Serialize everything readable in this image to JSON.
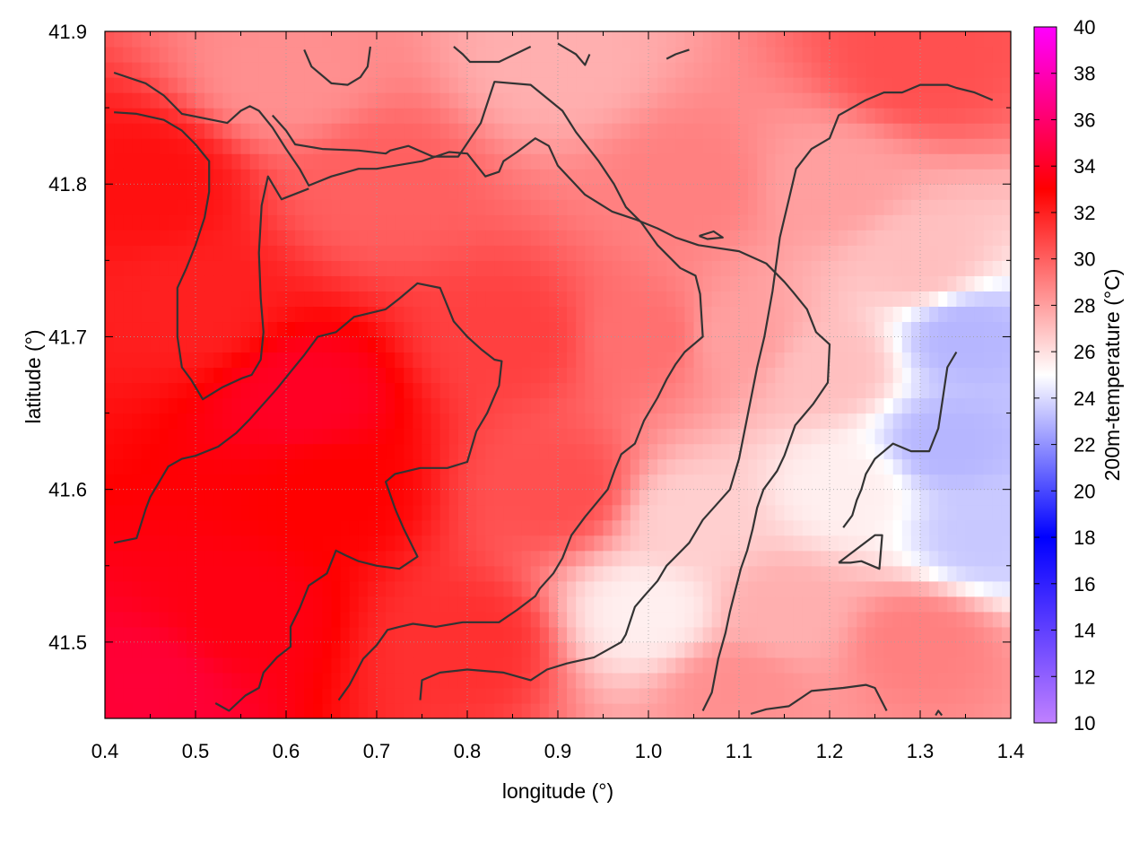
{
  "chart_data": {
    "type": "heatmap",
    "title": "",
    "xlabel": "longitude (°)",
    "ylabel": "latitude (°)",
    "colorbar_label": "200m-temperature (°C)",
    "xlim": [
      0.4,
      1.4
    ],
    "ylim": [
      41.45,
      41.9
    ],
    "clim": [
      10,
      40
    ],
    "x_ticks": [
      "0.4",
      "0.5",
      "0.6",
      "0.7",
      "0.8",
      "0.9",
      "1.0",
      "1.1",
      "1.2",
      "1.3",
      "1.4"
    ],
    "x_tick_values": [
      0.4,
      0.5,
      0.6,
      0.7,
      0.8,
      0.9,
      1.0,
      1.1,
      1.2,
      1.3,
      1.4
    ],
    "y_ticks": [
      "41.5",
      "41.6",
      "41.7",
      "41.8",
      "41.9"
    ],
    "y_tick_values": [
      41.5,
      41.6,
      41.7,
      41.8,
      41.9
    ],
    "colorbar_ticks": [
      "10",
      "12",
      "14",
      "16",
      "18",
      "20",
      "22",
      "24",
      "26",
      "28",
      "30",
      "32",
      "34",
      "36",
      "38",
      "40"
    ],
    "colorbar_tick_values": [
      10,
      12,
      14,
      16,
      18,
      20,
      22,
      24,
      26,
      28,
      30,
      32,
      34,
      36,
      38,
      40
    ],
    "colorscale": [
      {
        "v": 10,
        "color": "#c080ff"
      },
      {
        "v": 18,
        "color": "#0000ff"
      },
      {
        "v": 25,
        "color": "#ffffff"
      },
      {
        "v": 33,
        "color": "#ff0000"
      },
      {
        "v": 40,
        "color": "#ff00ff"
      }
    ],
    "grid": true,
    "field_samples": [
      {
        "x": 0.45,
        "y": 41.47,
        "t": 34.5
      },
      {
        "x": 0.55,
        "y": 41.52,
        "t": 33.5
      },
      {
        "x": 0.65,
        "y": 41.6,
        "t": 33.0
      },
      {
        "x": 0.62,
        "y": 41.66,
        "t": 34.0
      },
      {
        "x": 0.45,
        "y": 41.8,
        "t": 32.5
      },
      {
        "x": 0.5,
        "y": 41.72,
        "t": 32.0
      },
      {
        "x": 0.7,
        "y": 41.8,
        "t": 30.0
      },
      {
        "x": 0.85,
        "y": 41.7,
        "t": 31.0
      },
      {
        "x": 0.9,
        "y": 41.6,
        "t": 30.5
      },
      {
        "x": 0.8,
        "y": 41.5,
        "t": 31.5
      },
      {
        "x": 0.6,
        "y": 41.87,
        "t": 28.5
      },
      {
        "x": 0.9,
        "y": 41.88,
        "t": 27.5
      },
      {
        "x": 1.05,
        "y": 41.8,
        "t": 29.0
      },
      {
        "x": 1.2,
        "y": 41.8,
        "t": 28.0
      },
      {
        "x": 1.3,
        "y": 41.88,
        "t": 30.5
      },
      {
        "x": 1.0,
        "y": 41.7,
        "t": 29.5
      },
      {
        "x": 1.1,
        "y": 41.7,
        "t": 28.0
      },
      {
        "x": 1.2,
        "y": 41.68,
        "t": 27.0
      },
      {
        "x": 1.05,
        "y": 41.58,
        "t": 26.5
      },
      {
        "x": 1.0,
        "y": 41.52,
        "t": 25.5
      },
      {
        "x": 1.15,
        "y": 41.52,
        "t": 27.5
      },
      {
        "x": 1.1,
        "y": 41.47,
        "t": 28.5
      },
      {
        "x": 1.3,
        "y": 41.5,
        "t": 29.0
      },
      {
        "x": 1.22,
        "y": 41.6,
        "t": 25.5
      },
      {
        "x": 1.33,
        "y": 41.63,
        "t": 23.0
      },
      {
        "x": 1.35,
        "y": 41.7,
        "t": 23.0
      },
      {
        "x": 1.37,
        "y": 41.57,
        "t": 23.5
      },
      {
        "x": 1.3,
        "y": 41.75,
        "t": 27.0
      }
    ],
    "contours": [
      [
        [
          0.41,
          41.873
        ],
        [
          0.445,
          41.866
        ],
        [
          0.465,
          41.858
        ],
        [
          0.485,
          41.846
        ],
        [
          0.535,
          41.84
        ],
        [
          0.55,
          41.848
        ],
        [
          0.56,
          41.851
        ],
        [
          0.57,
          41.848
        ],
        [
          0.585,
          41.837
        ],
        [
          0.6,
          41.823
        ],
        [
          0.615,
          41.81
        ],
        [
          0.625,
          41.799
        ],
        [
          0.65,
          41.805
        ],
        [
          0.68,
          41.81
        ],
        [
          0.7,
          41.81
        ],
        [
          0.75,
          41.815
        ],
        [
          0.78,
          41.821
        ],
        [
          0.8,
          41.82
        ],
        [
          0.82,
          41.805
        ],
        [
          0.835,
          41.808
        ],
        [
          0.84,
          41.815
        ],
        [
          0.855,
          41.821
        ],
        [
          0.875,
          41.83
        ],
        [
          0.89,
          41.825
        ],
        [
          0.9,
          41.812
        ],
        [
          0.93,
          41.793
        ],
        [
          0.96,
          41.782
        ],
        [
          0.985,
          41.777
        ],
        [
          1.01,
          41.771
        ],
        [
          1.03,
          41.765
        ],
        [
          1.055,
          41.76
        ],
        [
          1.1,
          41.756
        ],
        [
          1.13,
          41.748
        ],
        [
          1.15,
          41.736
        ],
        [
          1.16,
          41.729
        ],
        [
          1.175,
          41.718
        ],
        [
          1.185,
          41.703
        ],
        [
          1.2,
          41.695
        ],
        [
          1.198,
          41.67
        ],
        [
          1.182,
          41.656
        ],
        [
          1.162,
          41.642
        ],
        [
          1.15,
          41.622
        ],
        [
          1.142,
          41.612
        ],
        [
          1.127,
          41.6
        ],
        [
          1.12,
          41.588
        ],
        [
          1.115,
          41.574
        ],
        [
          1.109,
          41.56
        ],
        [
          1.102,
          41.548
        ],
        [
          1.09,
          41.52
        ],
        [
          1.085,
          41.506
        ],
        [
          1.077,
          41.489
        ],
        [
          1.07,
          41.467
        ],
        [
          1.06,
          41.455
        ]
      ],
      [
        [
          0.41,
          41.847
        ],
        [
          0.435,
          41.846
        ],
        [
          0.465,
          41.842
        ],
        [
          0.485,
          41.835
        ],
        [
          0.5,
          41.826
        ],
        [
          0.515,
          41.815
        ],
        [
          0.515,
          41.795
        ],
        [
          0.51,
          41.778
        ],
        [
          0.5,
          41.76
        ],
        [
          0.49,
          41.745
        ],
        [
          0.48,
          41.732
        ],
        [
          0.48,
          41.708
        ],
        [
          0.48,
          41.7
        ],
        [
          0.485,
          41.68
        ],
        [
          0.495,
          41.672
        ],
        [
          0.508,
          41.659
        ],
        [
          0.53,
          41.667
        ],
        [
          0.552,
          41.673
        ],
        [
          0.562,
          41.675
        ],
        [
          0.572,
          41.685
        ],
        [
          0.575,
          41.703
        ],
        [
          0.572,
          41.725
        ],
        [
          0.57,
          41.755
        ],
        [
          0.573,
          41.786
        ],
        [
          0.58,
          41.805
        ],
        [
          0.595,
          41.79
        ],
        [
          0.625,
          41.797
        ]
      ],
      [
        [
          0.41,
          41.565
        ],
        [
          0.435,
          41.568
        ],
        [
          0.445,
          41.587
        ],
        [
          0.45,
          41.595
        ],
        [
          0.46,
          41.605
        ],
        [
          0.47,
          41.615
        ],
        [
          0.485,
          41.62
        ],
        [
          0.5,
          41.622
        ],
        [
          0.525,
          41.628
        ],
        [
          0.545,
          41.637
        ],
        [
          0.56,
          41.646
        ],
        [
          0.575,
          41.656
        ],
        [
          0.59,
          41.666
        ],
        [
          0.605,
          41.677
        ],
        [
          0.62,
          41.688
        ],
        [
          0.635,
          41.7
        ],
        [
          0.655,
          41.703
        ],
        [
          0.675,
          41.713
        ],
        [
          0.71,
          41.718
        ],
        [
          0.725,
          41.725
        ],
        [
          0.745,
          41.735
        ],
        [
          0.77,
          41.732
        ],
        [
          0.785,
          41.71
        ],
        [
          0.8,
          41.7
        ],
        [
          0.815,
          41.692
        ],
        [
          0.83,
          41.685
        ],
        [
          0.838,
          41.684
        ],
        [
          0.835,
          41.668
        ],
        [
          0.822,
          41.65
        ],
        [
          0.81,
          41.638
        ],
        [
          0.8,
          41.618
        ],
        [
          0.778,
          41.614
        ],
        [
          0.748,
          41.614
        ],
        [
          0.72,
          41.61
        ],
        [
          0.71,
          41.605
        ],
        [
          0.72,
          41.588
        ],
        [
          0.722,
          41.585
        ],
        [
          0.73,
          41.574
        ],
        [
          0.745,
          41.556
        ],
        [
          0.725,
          41.548
        ],
        [
          0.7,
          41.55
        ],
        [
          0.68,
          41.553
        ],
        [
          0.665,
          41.557
        ],
        [
          0.655,
          41.56
        ],
        [
          0.645,
          41.545
        ],
        [
          0.625,
          41.537
        ],
        [
          0.615,
          41.522
        ],
        [
          0.605,
          41.51
        ],
        [
          0.605,
          41.497
        ],
        [
          0.59,
          41.49
        ],
        [
          0.575,
          41.48
        ],
        [
          0.57,
          41.47
        ],
        [
          0.555,
          41.465
        ],
        [
          0.537,
          41.455
        ],
        [
          0.522,
          41.46
        ]
      ],
      [
        [
          0.658,
          41.462
        ],
        [
          0.67,
          41.472
        ],
        [
          0.685,
          41.489
        ],
        [
          0.7,
          41.498
        ],
        [
          0.712,
          41.508
        ],
        [
          0.725,
          41.51
        ],
        [
          0.74,
          41.512
        ],
        [
          0.765,
          41.51
        ],
        [
          0.795,
          41.513
        ],
        [
          0.835,
          41.513
        ],
        [
          0.855,
          41.521
        ],
        [
          0.875,
          41.53
        ],
        [
          0.88,
          41.535
        ],
        [
          0.895,
          41.545
        ],
        [
          0.905,
          41.555
        ],
        [
          0.915,
          41.57
        ],
        [
          0.93,
          41.582
        ],
        [
          0.955,
          41.6
        ],
        [
          0.963,
          41.613
        ],
        [
          0.97,
          41.623
        ],
        [
          0.985,
          41.63
        ],
        [
          0.995,
          41.645
        ],
        [
          1.01,
          41.66
        ],
        [
          1.02,
          41.672
        ],
        [
          1.03,
          41.682
        ],
        [
          1.04,
          41.69
        ],
        [
          1.06,
          41.7
        ],
        [
          1.057,
          41.728
        ],
        [
          1.052,
          41.74
        ],
        [
          1.035,
          41.745
        ],
        [
          1.01,
          41.76
        ],
        [
          0.992,
          41.775
        ],
        [
          0.975,
          41.785
        ],
        [
          0.962,
          41.8
        ],
        [
          0.945,
          41.815
        ],
        [
          0.92,
          41.834
        ],
        [
          0.905,
          41.848
        ],
        [
          0.87,
          41.865
        ],
        [
          0.83,
          41.867
        ],
        [
          0.815,
          41.84
        ],
        [
          0.79,
          41.818
        ],
        [
          0.762,
          41.818
        ],
        [
          0.735,
          41.825
        ],
        [
          0.715,
          41.822
        ],
        [
          0.71,
          41.82
        ],
        [
          0.68,
          41.822
        ],
        [
          0.64,
          41.823
        ],
        [
          0.61,
          41.826
        ],
        [
          0.6,
          41.835
        ],
        [
          0.585,
          41.845
        ]
      ],
      [
        [
          0.748,
          41.462
        ],
        [
          0.75,
          41.475
        ],
        [
          0.77,
          41.48
        ],
        [
          0.8,
          41.482
        ],
        [
          0.84,
          41.48
        ],
        [
          0.87,
          41.475
        ],
        [
          0.888,
          41.482
        ],
        [
          0.91,
          41.486
        ],
        [
          0.94,
          41.49
        ],
        [
          0.955,
          41.495
        ],
        [
          0.97,
          41.5
        ],
        [
          0.975,
          41.505
        ],
        [
          0.985,
          41.523
        ],
        [
          0.995,
          41.53
        ],
        [
          1.01,
          41.54
        ],
        [
          1.02,
          41.55
        ],
        [
          1.045,
          41.565
        ],
        [
          1.06,
          41.58
        ],
        [
          1.075,
          41.59
        ],
        [
          1.09,
          41.6
        ],
        [
          1.1,
          41.62
        ],
        [
          1.11,
          41.65
        ],
        [
          1.12,
          41.68
        ],
        [
          1.128,
          41.7
        ],
        [
          1.137,
          41.73
        ],
        [
          1.145,
          41.765
        ],
        [
          1.155,
          41.79
        ],
        [
          1.163,
          41.81
        ],
        [
          1.18,
          41.823
        ],
        [
          1.2,
          41.83
        ],
        [
          1.21,
          41.845
        ],
        [
          1.225,
          41.85
        ],
        [
          1.24,
          41.855
        ],
        [
          1.26,
          41.86
        ],
        [
          1.28,
          41.86
        ],
        [
          1.3,
          41.865
        ],
        [
          1.33,
          41.865
        ],
        [
          1.34,
          41.863
        ],
        [
          1.36,
          41.86
        ],
        [
          1.38,
          41.855
        ]
      ],
      [
        [
          1.21,
          41.552
        ],
        [
          1.223,
          41.552
        ],
        [
          1.235,
          41.553
        ],
        [
          1.255,
          41.548
        ],
        [
          1.258,
          41.57
        ],
        [
          1.25,
          41.57
        ],
        [
          1.21,
          41.552
        ]
      ],
      [
        [
          1.056,
          41.766
        ],
        [
          1.065,
          41.764
        ],
        [
          1.082,
          41.765
        ],
        [
          1.072,
          41.769
        ],
        [
          1.056,
          41.766
        ]
      ],
      [
        [
          1.113,
          41.453
        ],
        [
          1.13,
          41.456
        ],
        [
          1.155,
          41.458
        ],
        [
          1.18,
          41.468
        ],
        [
          1.215,
          41.47
        ],
        [
          1.24,
          41.472
        ],
        [
          1.25,
          41.47
        ],
        [
          1.263,
          41.455
        ]
      ],
      [
        [
          1.317,
          41.452
        ],
        [
          1.32,
          41.455
        ],
        [
          1.324,
          41.452
        ]
      ],
      [
        [
          0.62,
          41.888
        ],
        [
          0.628,
          41.877
        ],
        [
          0.65,
          41.866
        ],
        [
          0.668,
          41.865
        ],
        [
          0.682,
          41.87
        ],
        [
          0.69,
          41.877
        ],
        [
          0.693,
          41.89
        ]
      ],
      [
        [
          0.785,
          41.89
        ],
        [
          0.795,
          41.885
        ],
        [
          0.803,
          41.88
        ],
        [
          0.835,
          41.88
        ],
        [
          0.87,
          41.89
        ]
      ],
      [
        [
          0.9,
          41.892
        ],
        [
          0.92,
          41.885
        ],
        [
          0.93,
          41.878
        ],
        [
          0.935,
          41.885
        ]
      ],
      [
        [
          1.02,
          41.882
        ],
        [
          1.03,
          41.885
        ],
        [
          1.045,
          41.888
        ]
      ],
      [
        [
          1.34,
          41.69
        ],
        [
          1.33,
          41.68
        ],
        [
          1.325,
          41.66
        ],
        [
          1.32,
          41.64
        ],
        [
          1.31,
          41.625
        ],
        [
          1.29,
          41.625
        ],
        [
          1.27,
          41.63
        ],
        [
          1.25,
          41.62
        ],
        [
          1.24,
          41.61
        ],
        [
          1.235,
          41.6
        ],
        [
          1.23,
          41.593
        ],
        [
          1.225,
          41.583
        ],
        [
          1.215,
          41.575
        ]
      ]
    ]
  }
}
